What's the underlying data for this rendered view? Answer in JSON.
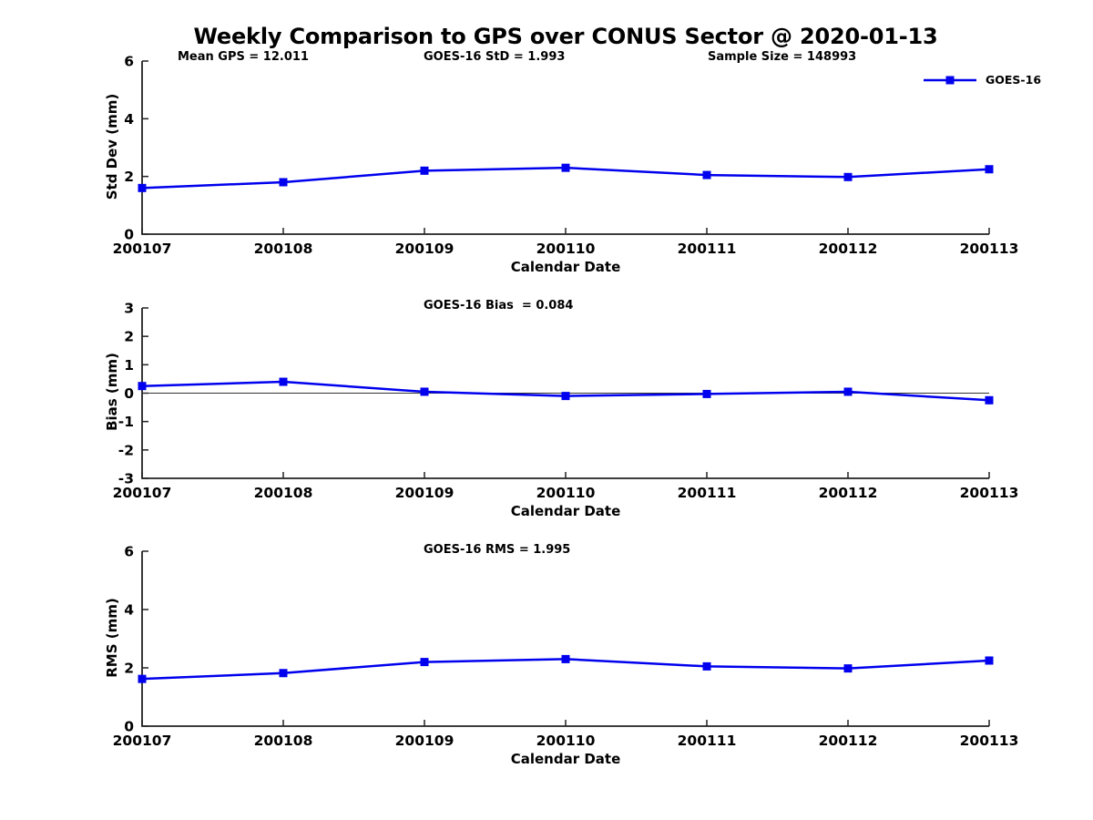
{
  "page": {
    "title": "Weekly Comparison to GPS over CONUS Sector @ 2020-01-13"
  },
  "legend": {
    "label": "GOES-16"
  },
  "colors": {
    "series": "#0000EE",
    "axis": "#222222",
    "text": "#000000",
    "zero_line": "#333333"
  },
  "chart_data": [
    {
      "type": "line",
      "panel": "std-dev",
      "annotations": [
        {
          "text": "Mean GPS = 12.011"
        },
        {
          "text": "GOES-16 StD = 1.993"
        },
        {
          "text": "Sample Size = 148993"
        }
      ],
      "categories": [
        "200107",
        "200108",
        "200109",
        "200110",
        "200111",
        "200112",
        "200113"
      ],
      "series": [
        {
          "name": "GOES-16",
          "values": [
            1.6,
            1.8,
            2.2,
            2.3,
            2.05,
            1.98,
            2.25
          ]
        }
      ],
      "xlabel": "Calendar Date",
      "ylabel": "Std Dev (mm)",
      "ylim": [
        0,
        6
      ],
      "yticks": [
        0,
        2,
        4,
        6
      ],
      "grid": false,
      "zero_line": false,
      "legend_position": "top-right",
      "marker": "square"
    },
    {
      "type": "line",
      "panel": "bias",
      "annotations": [
        {
          "text": "GOES-16 Bias  = 0.084"
        }
      ],
      "categories": [
        "200107",
        "200108",
        "200109",
        "200110",
        "200111",
        "200112",
        "200113"
      ],
      "series": [
        {
          "name": "GOES-16",
          "values": [
            0.25,
            0.4,
            0.05,
            -0.1,
            -0.03,
            0.05,
            -0.25
          ]
        }
      ],
      "xlabel": "Calendar Date",
      "ylabel": "Bias (mm)",
      "ylim": [
        -3,
        3
      ],
      "yticks": [
        -3,
        -2,
        -1,
        0,
        1,
        2,
        3
      ],
      "grid": false,
      "zero_line": true,
      "legend_position": "none",
      "marker": "square"
    },
    {
      "type": "line",
      "panel": "rms",
      "annotations": [
        {
          "text": "GOES-16 RMS = 1.995"
        }
      ],
      "categories": [
        "200107",
        "200108",
        "200109",
        "200110",
        "200111",
        "200112",
        "200113"
      ],
      "series": [
        {
          "name": "GOES-16",
          "values": [
            1.62,
            1.82,
            2.2,
            2.3,
            2.05,
            1.98,
            2.25
          ]
        }
      ],
      "xlabel": "Calendar Date",
      "ylabel": "RMS (mm)",
      "ylim": [
        0,
        6
      ],
      "yticks": [
        0,
        2,
        4,
        6
      ],
      "grid": false,
      "zero_line": false,
      "legend_position": "none",
      "marker": "square"
    }
  ]
}
